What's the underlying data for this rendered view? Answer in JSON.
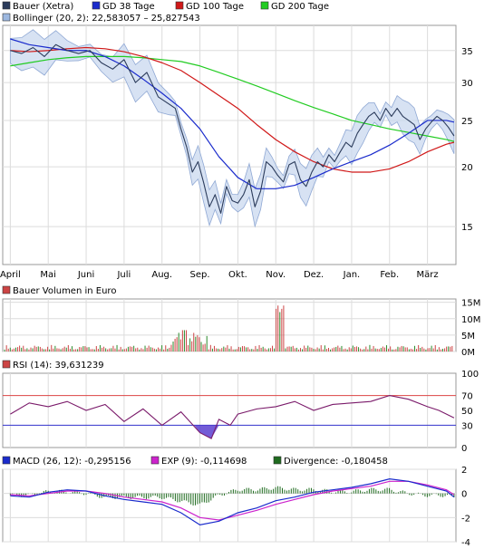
{
  "chart_data": [
    {
      "type": "line",
      "panel": "price",
      "scale": "log",
      "ylim": [
        12.5,
        39.5
      ],
      "y_ticks": [
        15,
        20,
        25,
        30,
        35
      ],
      "x_ticks": [
        "April",
        "Mai",
        "Juni",
        "Juli",
        "Aug.",
        "Sep.",
        "Okt.",
        "Nov.",
        "Dez.",
        "Jan.",
        "Feb.",
        "März"
      ],
      "grid": true,
      "legend_position": "top-left",
      "legend": [
        {
          "label": "Bauer (Xetra)",
          "color": "#2b3b5b"
        },
        {
          "label": "GD 38 Tage",
          "color": "#1a2bcc"
        },
        {
          "label": "GD 100 Tage",
          "color": "#d01818"
        },
        {
          "label": "GD 200 Tage",
          "color": "#22cc22"
        },
        {
          "label": "Bollinger (20, 2): 22,583057 – 25,827543",
          "color": "#9db8e0"
        }
      ],
      "series": [
        {
          "name": "Bauer (Xetra)",
          "color": "#2b3b5b",
          "x": [
            0,
            0.3,
            0.6,
            0.9,
            1.2,
            1.5,
            1.8,
            2.1,
            2.4,
            2.7,
            3.0,
            3.3,
            3.6,
            3.9,
            4.2,
            4.35,
            4.5,
            4.65,
            4.8,
            4.95,
            5.1,
            5.25,
            5.4,
            5.55,
            5.7,
            5.85,
            6.0,
            6.15,
            6.3,
            6.45,
            6.6,
            6.75,
            6.9,
            7.05,
            7.2,
            7.35,
            7.5,
            7.65,
            7.8,
            7.95,
            8.1,
            8.25,
            8.4,
            8.55,
            8.7,
            8.85,
            9.0,
            9.15,
            9.3,
            9.45,
            9.6,
            9.75,
            9.9,
            10.05,
            10.2,
            10.35,
            10.5,
            10.65,
            10.8,
            10.95,
            11.1,
            11.25,
            11.4,
            11.55,
            11.7
          ],
          "values": [
            35,
            34.5,
            35.5,
            34,
            36,
            35,
            34.5,
            35,
            33,
            32,
            33.5,
            30,
            31.5,
            28,
            27,
            26.5,
            24,
            22,
            19.5,
            20.5,
            18.5,
            16.5,
            17.5,
            16,
            18.2,
            17,
            16.8,
            17.5,
            18.8,
            16.5,
            17.8,
            20.5,
            20,
            19.2,
            18.6,
            20.2,
            20.5,
            18.8,
            18.2,
            19.5,
            20.5,
            20,
            21.2,
            20.5,
            21.5,
            22.5,
            22,
            23.5,
            24.5,
            25.5,
            26,
            25,
            26.5,
            25.5,
            26.5,
            25.5,
            25,
            24.5,
            22.8,
            24,
            24.8,
            25.5,
            25,
            24.2,
            23.2
          ]
        },
        {
          "name": "GD 38 Tage",
          "color": "#1a2bcc",
          "x": [
            0,
            0.5,
            1,
            1.5,
            2,
            2.5,
            3,
            3.5,
            4,
            4.5,
            5,
            5.5,
            6,
            6.5,
            7,
            7.5,
            8,
            8.5,
            9,
            9.5,
            10,
            10.5,
            11,
            11.5,
            11.7
          ],
          "values": [
            37,
            36,
            35.5,
            35,
            35,
            34,
            32.5,
            30.5,
            28.5,
            26.5,
            24,
            21,
            19,
            18,
            18,
            18.3,
            19,
            19.8,
            20.5,
            21.2,
            22.2,
            23.5,
            25,
            25,
            24.8
          ]
        },
        {
          "name": "GD 100 Tage",
          "color": "#d01818",
          "x": [
            0,
            0.5,
            1,
            1.5,
            2,
            2.5,
            3,
            3.5,
            4,
            4.5,
            5,
            5.5,
            6,
            6.5,
            7,
            7.5,
            8,
            8.5,
            9,
            9.5,
            10,
            10.5,
            11,
            11.5,
            11.7
          ],
          "values": [
            35,
            34.8,
            35,
            35.3,
            35.5,
            35.3,
            34.8,
            34,
            33,
            31.8,
            30,
            28.2,
            26.5,
            24.5,
            22.8,
            21.5,
            20.5,
            19.8,
            19.5,
            19.5,
            19.8,
            20.5,
            21.5,
            22.3,
            22.5
          ]
        },
        {
          "name": "GD 200 Tage",
          "color": "#22cc22",
          "x": [
            0,
            0.5,
            1,
            1.5,
            2,
            2.5,
            3,
            3.5,
            4,
            4.5,
            5,
            5.5,
            6,
            6.5,
            7,
            7.5,
            8,
            8.5,
            9,
            9.5,
            10,
            10.5,
            11,
            11.5,
            11.7
          ],
          "values": [
            32.5,
            33,
            33.5,
            33.8,
            34,
            34,
            34,
            33.8,
            33.5,
            33.2,
            32.5,
            31.5,
            30.5,
            29.5,
            28.5,
            27.5,
            26.6,
            25.8,
            25,
            24.5,
            24,
            23.6,
            23.2,
            22.8,
            22.6
          ]
        }
      ]
    },
    {
      "type": "bar",
      "panel": "volume",
      "ylim": [
        0,
        16
      ],
      "y_ticks": [
        "0M",
        "5M",
        "10M",
        "15M"
      ],
      "legend": [
        {
          "label": "Bauer Volumen in Euro",
          "color": "#cc4444"
        }
      ]
    },
    {
      "type": "line",
      "panel": "rsi",
      "ylim": [
        0,
        100
      ],
      "y_ticks": [
        0,
        30,
        50,
        70,
        100
      ],
      "reference_lines": [
        {
          "value": 70,
          "color": "#dd4444"
        },
        {
          "value": 30,
          "color": "#3333cc"
        }
      ],
      "legend": [
        {
          "label": "RSI (14): 39,631239",
          "color": "#cc4444"
        }
      ],
      "series": [
        {
          "name": "RSI (14)",
          "color": "#7a1a6a",
          "x": [
            0,
            0.5,
            1,
            1.5,
            2,
            2.5,
            3,
            3.5,
            4,
            4.5,
            5,
            5.3,
            5.5,
            5.8,
            6,
            6.5,
            7,
            7.5,
            8,
            8.5,
            9,
            9.5,
            10,
            10.5,
            11,
            11.3,
            11.5,
            11.7
          ],
          "values": [
            45,
            60,
            55,
            62,
            50,
            58,
            35,
            52,
            30,
            48,
            20,
            12,
            38,
            30,
            45,
            52,
            55,
            62,
            50,
            58,
            60,
            62,
            70,
            65,
            55,
            50,
            45,
            40
          ]
        }
      ]
    },
    {
      "type": "line",
      "panel": "macd",
      "ylim": [
        -4,
        2
      ],
      "y_ticks": [
        -4,
        -2,
        0,
        2
      ],
      "legend": [
        {
          "label": "MACD (26, 12): -0,295156",
          "color": "#1a2bcc"
        },
        {
          "label": "EXP (9): -0,114698",
          "color": "#cc22cc"
        },
        {
          "label": "Divergence: -0,180458",
          "color": "#1f6b1f"
        }
      ],
      "series": [
        {
          "name": "MACD (26, 12)",
          "color": "#1a2bcc",
          "x": [
            0,
            0.5,
            1,
            1.5,
            2,
            2.5,
            3,
            3.5,
            4,
            4.5,
            5,
            5.5,
            6,
            6.5,
            7,
            7.5,
            8,
            8.5,
            9,
            9.5,
            10,
            10.5,
            11,
            11.5,
            11.7
          ],
          "values": [
            -0.2,
            -0.3,
            0.1,
            0.3,
            0.2,
            -0.2,
            -0.5,
            -0.7,
            -0.9,
            -1.6,
            -2.6,
            -2.3,
            -1.6,
            -1.2,
            -0.6,
            -0.3,
            0.1,
            0.3,
            0.5,
            0.8,
            1.2,
            1.0,
            0.6,
            0.2,
            -0.3
          ]
        },
        {
          "name": "EXP (9)",
          "color": "#cc22cc",
          "x": [
            0,
            0.5,
            1,
            1.5,
            2,
            2.5,
            3,
            3.5,
            4,
            4.5,
            5,
            5.5,
            6,
            6.5,
            7,
            7.5,
            8,
            8.5,
            9,
            9.5,
            10,
            10.5,
            11,
            11.5,
            11.7
          ],
          "values": [
            -0.1,
            -0.2,
            0.0,
            0.2,
            0.2,
            0.0,
            -0.3,
            -0.5,
            -0.7,
            -1.2,
            -2.0,
            -2.2,
            -1.8,
            -1.4,
            -0.9,
            -0.5,
            -0.1,
            0.2,
            0.4,
            0.6,
            1.0,
            1.0,
            0.7,
            0.3,
            -0.1
          ]
        }
      ]
    }
  ]
}
